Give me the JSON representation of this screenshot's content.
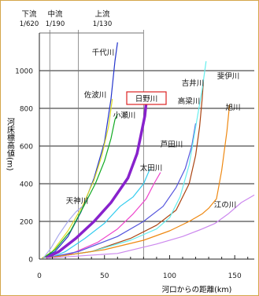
{
  "chart_data": {
    "type": "line",
    "xlabel": "河口からの距離(km)",
    "ylabel": "河床標高値(m)",
    "xlim": [
      0,
      165
    ],
    "ylim": [
      0,
      1200
    ],
    "xticks": [
      0,
      50,
      100,
      150
    ],
    "yticks": [
      0,
      200,
      400,
      600,
      800,
      1000
    ],
    "grid": "horizontal",
    "segments": [
      {
        "label": "下流",
        "gradient": "1/620",
        "x_end": 8
      },
      {
        "label": "中流",
        "gradient": "1/190",
        "x_end": 30
      },
      {
        "label": "上流",
        "gradient": "1/130",
        "x_end": 80
      }
    ],
    "series": [
      {
        "name": "千代川",
        "color": "#2233cc",
        "x": [
          2,
          12,
          22,
          32,
          42,
          50,
          55,
          58,
          60
        ],
        "y": [
          5,
          40,
          120,
          250,
          430,
          620,
          850,
          1050,
          1150
        ]
      },
      {
        "name": "佐波川",
        "color": "#dddd22",
        "x": [
          2,
          10,
          22,
          33,
          42,
          48,
          53,
          56
        ],
        "y": [
          5,
          40,
          150,
          280,
          420,
          550,
          700,
          850
        ]
      },
      {
        "name": "小瀬川",
        "color": "#11aa22",
        "x": [
          3,
          12,
          24,
          34,
          43,
          50,
          55,
          58,
          60
        ],
        "y": [
          5,
          50,
          150,
          280,
          400,
          520,
          640,
          740,
          770
        ]
      },
      {
        "name": "日野川",
        "color": "#8822cc",
        "x": [
          5,
          15,
          28,
          42,
          55,
          68,
          75,
          78,
          81,
          82
        ],
        "y": [
          5,
          40,
          110,
          200,
          300,
          430,
          560,
          660,
          760,
          830
        ],
        "highlight": true
      },
      {
        "name": "天神川",
        "color": "#aaaaee",
        "x": [
          3,
          9,
          15,
          22,
          28,
          33
        ],
        "y": [
          5,
          60,
          130,
          200,
          250,
          280
        ]
      },
      {
        "name": "太田川",
        "color": "#33ccee",
        "x": [
          8,
          20,
          35,
          50,
          62,
          72,
          80,
          85
        ],
        "y": [
          5,
          40,
          110,
          190,
          280,
          330,
          400,
          480
        ]
      },
      {
        "name": "芦田川",
        "color": "#ee44cc",
        "x": [
          5,
          25,
          45,
          60,
          72,
          82,
          88,
          93
        ],
        "y": [
          5,
          30,
          90,
          160,
          240,
          320,
          400,
          460
        ]
      },
      {
        "name": "高梁川",
        "color": "#5555dd",
        "x": [
          5,
          30,
          60,
          80,
          95,
          105,
          112,
          117,
          120
        ],
        "y": [
          5,
          40,
          120,
          200,
          280,
          380,
          480,
          600,
          720
        ]
      },
      {
        "name": "吉井川",
        "color": "#aa4411",
        "x": [
          5,
          40,
          70,
          90,
          105,
          115,
          120,
          123,
          125,
          126
        ],
        "y": [
          5,
          40,
          110,
          180,
          260,
          400,
          550,
          700,
          850,
          950
        ]
      },
      {
        "name": "斐伊川",
        "color": "#66eeee",
        "x": [
          5,
          40,
          70,
          90,
          100,
          108,
          115,
          120,
          125,
          128
        ],
        "y": [
          5,
          40,
          100,
          160,
          220,
          330,
          500,
          700,
          900,
          1050
        ]
      },
      {
        "name": "旭川",
        "color": "#ee8811",
        "x": [
          5,
          50,
          80,
          100,
          115,
          125,
          130,
          136,
          140,
          144,
          146
        ],
        "y": [
          5,
          50,
          100,
          150,
          200,
          240,
          270,
          320,
          470,
          680,
          820
        ]
      },
      {
        "name": "江の川",
        "color": "#cc88ee",
        "x": [
          5,
          60,
          90,
          110,
          125,
          135,
          145,
          155,
          165
        ],
        "y": [
          5,
          30,
          80,
          120,
          160,
          190,
          240,
          300,
          340
        ]
      }
    ]
  }
}
